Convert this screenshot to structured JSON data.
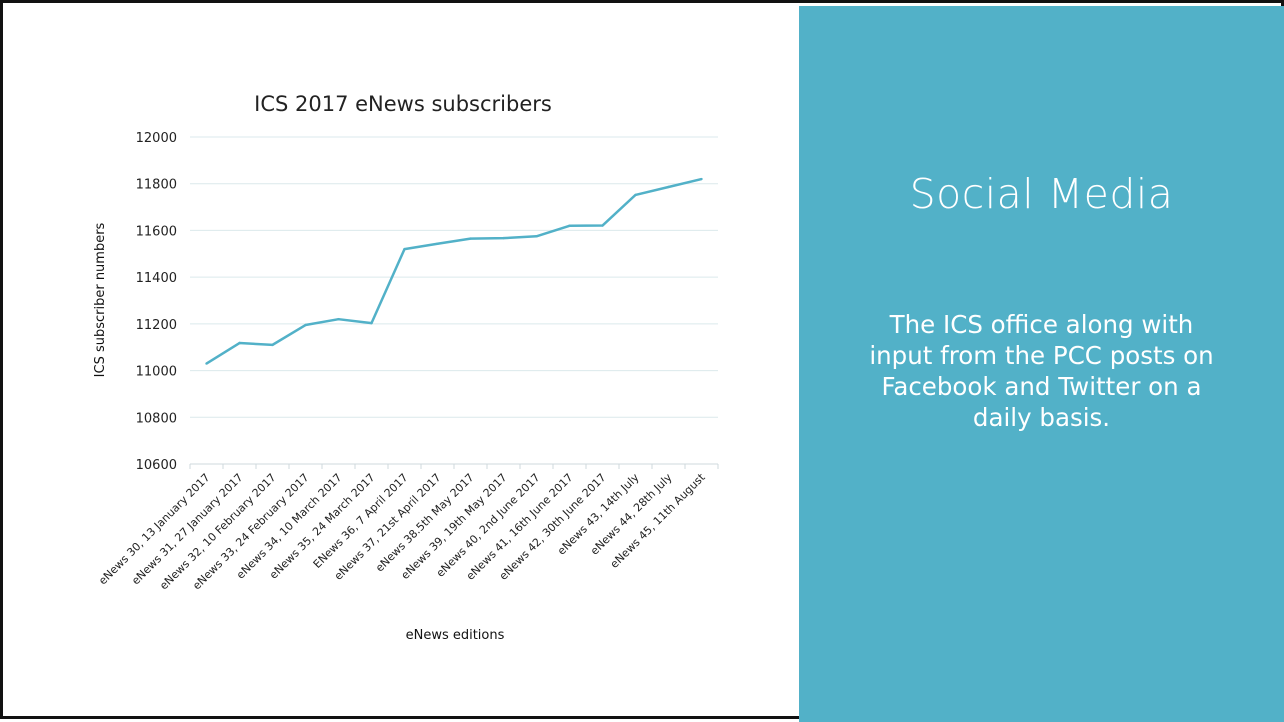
{
  "side_panel": {
    "title": "Social Media",
    "body": "The ICS office along with input from the PCC posts on Facebook and Twitter on a daily basis.",
    "background_color": "#52b1c8"
  },
  "chart_data": {
    "type": "line",
    "title": "ICS 2017 eNews subscribers",
    "xlabel": "eNews editions",
    "ylabel": "ICS subscriber numbers",
    "ylim": [
      10600,
      12000
    ],
    "yticks": [
      10600,
      10800,
      11000,
      11200,
      11400,
      11600,
      11800,
      12000
    ],
    "grid": true,
    "line_color": "#52b1c8",
    "categories": [
      "eNews 30, 13 January 2017",
      "eNews 31, 27 January 2017",
      "eNews  32, 10 February 2017",
      "eNews 33, 24 February 2017",
      "eNews 34, 10 March 2017",
      "eNews 35, 24 March 2017",
      "ENews 36, 7 April 2017",
      "eNews 37, 21st April 2017",
      "eNews 38.5th May 2017",
      "eNews 39, 19th May 2017",
      "eNews 40, 2nd June 2017",
      "eNews 41, 16th June 2017",
      "eNews 42, 30th June 2017",
      "eNews 43, 14th July",
      "eNews 44, 28th July",
      "eNews 45, 11th August"
    ],
    "values": [
      11030,
      11118,
      11110,
      11195,
      11220,
      11203,
      11520,
      11543,
      11565,
      11567,
      11575,
      11620,
      11621,
      11752,
      11786,
      11820
    ]
  }
}
